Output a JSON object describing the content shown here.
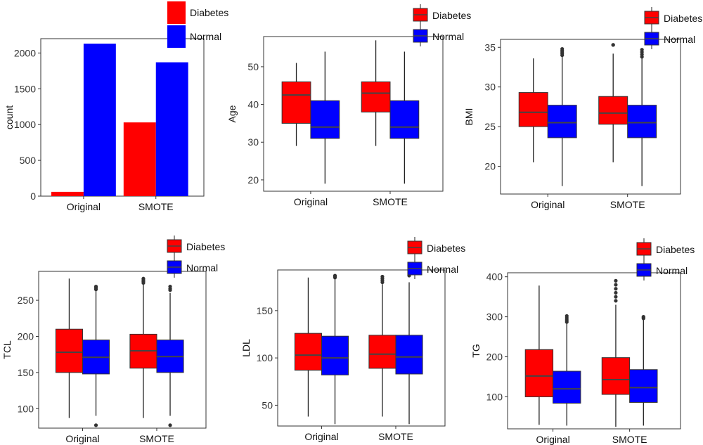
{
  "chart_data": [
    {
      "type": "bar",
      "categories": [
        "Original",
        "SMOTE"
      ],
      "ylabel": "count",
      "ylim": [
        0,
        2200
      ],
      "yticks": [
        0,
        500,
        1000,
        1500,
        2000
      ],
      "series": [
        {
          "name": "Diabetes",
          "color": "#ff0000",
          "values": [
            60,
            1030
          ]
        },
        {
          "name": "Normal",
          "color": "#0000ff",
          "values": [
            2130,
            1870
          ]
        }
      ]
    },
    {
      "type": "box",
      "categories": [
        "Original",
        "SMOTE"
      ],
      "ylabel": "Age",
      "ylim": [
        17,
        58
      ],
      "yticks": [
        20,
        30,
        40,
        50
      ],
      "series": [
        {
          "name": "Diabetes",
          "color": "#ff0000",
          "boxes": [
            {
              "lower_whisker": 29,
              "q1": 35,
              "median": 42.5,
              "q3": 46,
              "upper_whisker": 51,
              "outliers": []
            },
            {
              "lower_whisker": 29,
              "q1": 38,
              "median": 43,
              "q3": 46,
              "upper_whisker": 57,
              "outliers": []
            }
          ]
        },
        {
          "name": "Normal",
          "color": "#0000ff",
          "boxes": [
            {
              "lower_whisker": 19,
              "q1": 31,
              "median": 34,
              "q3": 41,
              "upper_whisker": 54,
              "outliers": []
            },
            {
              "lower_whisker": 19,
              "q1": 31,
              "median": 34,
              "q3": 41,
              "upper_whisker": 54,
              "outliers": []
            }
          ]
        }
      ]
    },
    {
      "type": "box",
      "categories": [
        "Original",
        "SMOTE"
      ],
      "ylabel": "BMI",
      "ylim": [
        16.5,
        36
      ],
      "yticks": [
        20,
        25,
        30,
        35
      ],
      "series": [
        {
          "name": "Diabetes",
          "color": "#ff0000",
          "boxes": [
            {
              "lower_whisker": 20.5,
              "q1": 25,
              "median": 26.8,
              "q3": 29.3,
              "upper_whisker": 33.6,
              "outliers": []
            },
            {
              "lower_whisker": 20.5,
              "q1": 25.3,
              "median": 26.7,
              "q3": 28.8,
              "upper_whisker": 34.2,
              "outliers": [
                35.3,
                35.3
              ]
            }
          ]
        },
        {
          "name": "Normal",
          "color": "#0000ff",
          "boxes": [
            {
              "lower_whisker": 17.5,
              "q1": 23.6,
              "median": 25.5,
              "q3": 27.7,
              "upper_whisker": 33.8,
              "outliers": [
                34,
                34.2,
                34.4,
                34.6,
                34.8
              ]
            },
            {
              "lower_whisker": 17.5,
              "q1": 23.6,
              "median": 25.5,
              "q3": 27.7,
              "upper_whisker": 33.6,
              "outliers": [
                33.8,
                34.1,
                34.4,
                34.7
              ]
            }
          ]
        }
      ]
    },
    {
      "type": "box",
      "categories": [
        "Original",
        "SMOTE"
      ],
      "ylabel": "TCL",
      "ylim": [
        73,
        290
      ],
      "yticks": [
        100,
        150,
        200,
        250
      ],
      "series": [
        {
          "name": "Diabetes",
          "color": "#ff0000",
          "boxes": [
            {
              "lower_whisker": 87,
              "q1": 150,
              "median": 178,
              "q3": 210,
              "upper_whisker": 280,
              "outliers": []
            },
            {
              "lower_whisker": 87,
              "q1": 156,
              "median": 180,
              "q3": 203,
              "upper_whisker": 272,
              "outliers": [
                274,
                276,
                278,
                280
              ]
            }
          ]
        },
        {
          "name": "Normal",
          "color": "#0000ff",
          "boxes": [
            {
              "lower_whisker": 90,
              "q1": 148,
              "median": 171,
              "q3": 195,
              "upper_whisker": 263,
              "outliers": [
                77,
                265,
                267,
                269
              ]
            },
            {
              "lower_whisker": 90,
              "q1": 150,
              "median": 172,
              "q3": 195,
              "upper_whisker": 260,
              "outliers": [
                77,
                264,
                266,
                269
              ]
            }
          ]
        }
      ]
    },
    {
      "type": "box",
      "categories": [
        "Original",
        "SMOTE"
      ],
      "ylabel": "LDL",
      "ylim": [
        28,
        193
      ],
      "yticks": [
        50,
        100,
        150
      ],
      "series": [
        {
          "name": "Diabetes",
          "color": "#ff0000",
          "boxes": [
            {
              "lower_whisker": 38,
              "q1": 87,
              "median": 103,
              "q3": 126,
              "upper_whisker": 185,
              "outliers": []
            },
            {
              "lower_whisker": 38,
              "q1": 89,
              "median": 104,
              "q3": 124,
              "upper_whisker": 178,
              "outliers": [
                180,
                182,
                184,
                186
              ]
            }
          ]
        },
        {
          "name": "Normal",
          "color": "#0000ff",
          "boxes": [
            {
              "lower_whisker": 30,
              "q1": 82,
              "median": 100,
              "q3": 123,
              "upper_whisker": 184,
              "outliers": [
                185,
                186,
                187
              ]
            },
            {
              "lower_whisker": 30,
              "q1": 83,
              "median": 101,
              "q3": 124,
              "upper_whisker": 180,
              "outliers": [
                187
              ]
            }
          ]
        }
      ]
    },
    {
      "type": "box",
      "categories": [
        "Original",
        "SMOTE"
      ],
      "ylabel": "TG",
      "ylim": [
        20,
        410
      ],
      "yticks": [
        100,
        200,
        300,
        400
      ],
      "series": [
        {
          "name": "Diabetes",
          "color": "#ff0000",
          "boxes": [
            {
              "lower_whisker": 30,
              "q1": 100,
              "median": 152,
              "q3": 218,
              "upper_whisker": 378,
              "outliers": []
            },
            {
              "lower_whisker": 25,
              "q1": 106,
              "median": 143,
              "q3": 198,
              "upper_whisker": 330,
              "outliers": [
                340,
                350,
                360,
                370,
                380,
                390
              ]
            }
          ]
        },
        {
          "name": "Normal",
          "color": "#0000ff",
          "boxes": [
            {
              "lower_whisker": 28,
              "q1": 84,
              "median": 120,
              "q3": 164,
              "upper_whisker": 283,
              "outliers": [
                287,
                292,
                297,
                302
              ]
            },
            {
              "lower_whisker": 28,
              "q1": 86,
              "median": 123,
              "q3": 168,
              "upper_whisker": 293,
              "outliers": [
                296,
                298,
                300
              ]
            }
          ]
        }
      ]
    }
  ]
}
